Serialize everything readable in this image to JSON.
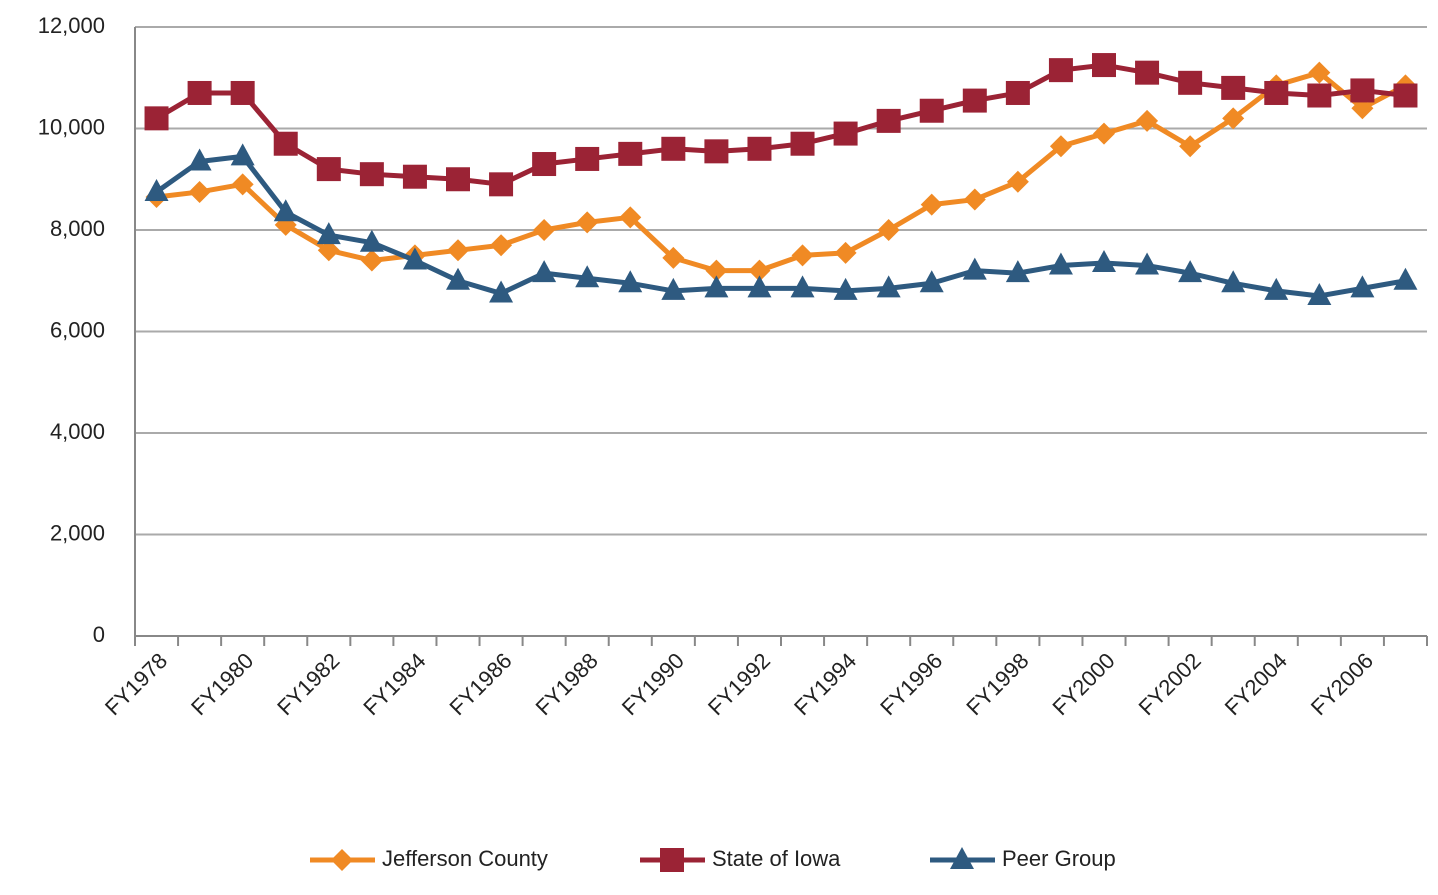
{
  "chart_data": {
    "type": "line",
    "categories": [
      "FY1978",
      null,
      "FY1980",
      null,
      "FY1982",
      null,
      "FY1984",
      null,
      "FY1986",
      null,
      "FY1988",
      null,
      "FY1990",
      null,
      "FY1992",
      null,
      "FY1994",
      null,
      "FY1996",
      null,
      "FY1998",
      null,
      "FY2000",
      null,
      "FY2002",
      null,
      "FY2004",
      null,
      "FY2006",
      null
    ],
    "series": [
      {
        "name": "Jefferson County",
        "color": "#f08a24",
        "marker": "diamond",
        "values": [
          8650,
          8750,
          8900,
          8100,
          7600,
          7400,
          7500,
          7600,
          7700,
          8000,
          8150,
          8250,
          7450,
          7200,
          7200,
          7500,
          7550,
          8000,
          8500,
          8600,
          8950,
          9650,
          9900,
          10150,
          9650,
          10200,
          10850,
          11100,
          10400,
          10850
        ]
      },
      {
        "name": "State of Iowa",
        "color": "#9b2335",
        "marker": "square",
        "values": [
          10200,
          10700,
          10700,
          9700,
          9200,
          9100,
          9050,
          9000,
          8900,
          9300,
          9400,
          9500,
          9600,
          9550,
          9600,
          9700,
          9900,
          10150,
          10350,
          10550,
          10700,
          11150,
          11250,
          11100,
          10900,
          10800,
          10700,
          10650,
          10750,
          10650
        ]
      },
      {
        "name": "Peer Group",
        "color": "#2e5a80",
        "marker": "triangle",
        "values": [
          8750,
          9350,
          9450,
          8350,
          7900,
          7750,
          7400,
          7000,
          6750,
          7150,
          7050,
          6950,
          6800,
          6850,
          6850,
          6850,
          6800,
          6850,
          6950,
          7200,
          7150,
          7300,
          7350,
          7300,
          7150,
          6950,
          6800,
          6700,
          6850,
          7000
        ]
      }
    ],
    "ylim": [
      0,
      12000
    ],
    "yticks": [
      0,
      {
        "value": 2000,
        "label": "2,000"
      },
      {
        "value": 4000,
        "label": "4,000"
      },
      {
        "value": 6000,
        "label": "6,000"
      },
      {
        "value": 8000,
        "label": "8,000"
      },
      {
        "value": 10000,
        "label": "10,000"
      },
      {
        "value": 12000,
        "label": "12,000"
      }
    ],
    "grid": true,
    "legend": "bottom"
  }
}
